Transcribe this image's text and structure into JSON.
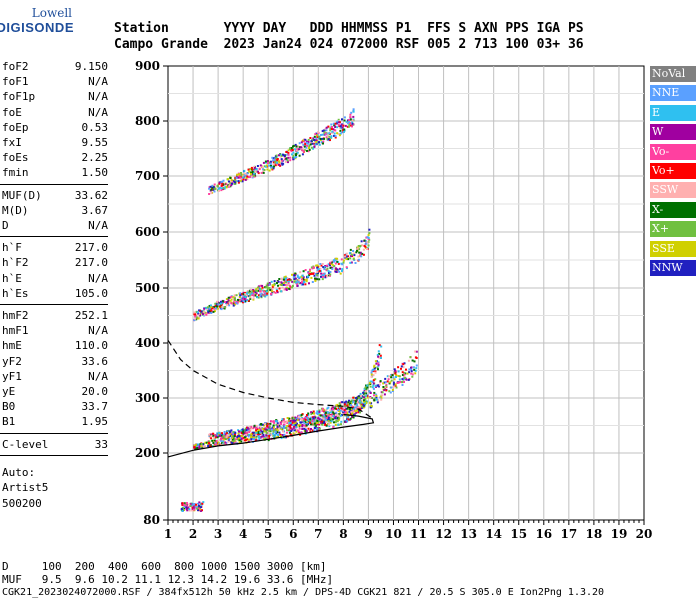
{
  "logo": {
    "top": "Lowell",
    "bottom": "DIGISONDE"
  },
  "header": {
    "labels_line": "Station       YYYY DAY   DDD HHMMSS P1  FFS S AXN PPS IGA PS",
    "values_line": "Campo Grande  2023 Jan24 024 072000 RSF 005 2 713 100 03+ 36"
  },
  "params": [
    {
      "group": [
        {
          "name": "foF2",
          "value": "9.150"
        },
        {
          "name": "foF1",
          "value": "N/A"
        },
        {
          "name": "foF1p",
          "value": "N/A"
        },
        {
          "name": "foE",
          "value": "N/A"
        },
        {
          "name": "foEp",
          "value": "0.53"
        },
        {
          "name": "fxI",
          "value": "9.55"
        },
        {
          "name": "foEs",
          "value": "2.25"
        },
        {
          "name": "fmin",
          "value": "1.50"
        }
      ]
    },
    {
      "group": [
        {
          "name": "MUF(D)",
          "value": "33.62"
        },
        {
          "name": "M(D)",
          "value": "3.67"
        },
        {
          "name": "D",
          "value": "N/A"
        }
      ]
    },
    {
      "group": [
        {
          "name": "h`F",
          "value": "217.0"
        },
        {
          "name": "h`F2",
          "value": "217.0"
        },
        {
          "name": "h`E",
          "value": "N/A"
        },
        {
          "name": "h`Es",
          "value": "105.0"
        }
      ]
    },
    {
      "group": [
        {
          "name": "hmF2",
          "value": "252.1"
        },
        {
          "name": "hmF1",
          "value": "N/A"
        },
        {
          "name": "hmE",
          "value": "110.0"
        },
        {
          "name": "yF2",
          "value": "33.6"
        },
        {
          "name": "yF1",
          "value": "N/A"
        },
        {
          "name": "yE",
          "value": "20.0"
        },
        {
          "name": "B0",
          "value": "33.7"
        },
        {
          "name": "B1",
          "value": "1.95"
        }
      ]
    },
    {
      "group": [
        {
          "name": "C-level",
          "value": "33"
        }
      ]
    }
  ],
  "auto": [
    "Auto:",
    "Artist5",
    "500200"
  ],
  "legend": [
    {
      "label": "NoVal",
      "color": "#808080"
    },
    {
      "label": "NNE",
      "color": "#5aa0ff"
    },
    {
      "label": "E",
      "color": "#2fc0f0"
    },
    {
      "label": "W",
      "color": "#a000a0"
    },
    {
      "label": "Vo-",
      "color": "#ff40a0"
    },
    {
      "label": "Vo+",
      "color": "#ff0000"
    },
    {
      "label": "SSW",
      "color": "#ffb0b0"
    },
    {
      "label": "X-",
      "color": "#007000"
    },
    {
      "label": "X+",
      "color": "#70c040"
    },
    {
      "label": "SSE",
      "color": "#d0d000"
    },
    {
      "label": "NNW",
      "color": "#2020c0"
    }
  ],
  "footer": {
    "line1": "D     100  200  400  600  800 1000 1500 3000 [km]",
    "line2": "MUF   9.5  9.6 10.2 11.1 12.3 14.2 19.6 33.6 [MHz]",
    "line3": "CGK21_2023024072000.RSF / 384fx512h 50 kHz 2.5 km / DPS-4D CGK21 821 / 20.5 S 305.0 E Ion2Png 1.3.20"
  },
  "chart_data": {
    "type": "scatter",
    "xlabel": "",
    "ylabel": "",
    "xlim": [
      1,
      20
    ],
    "ylim": [
      80,
      900
    ],
    "x_ticks": [
      1,
      2,
      3,
      4,
      5,
      6,
      7,
      8,
      9,
      10,
      11,
      12,
      13,
      14,
      15,
      16,
      17,
      18,
      19,
      20
    ],
    "y_ticks": [
      80,
      200,
      300,
      400,
      500,
      600,
      700,
      800,
      900
    ],
    "grid": true,
    "echo_traces": [
      {
        "name": "F2 O-trace",
        "points": [
          [
            2.0,
            212
          ],
          [
            3,
            222
          ],
          [
            4,
            228
          ],
          [
            5,
            235
          ],
          [
            6,
            245
          ],
          [
            7,
            255
          ],
          [
            8,
            270
          ],
          [
            8.6,
            290
          ],
          [
            9.0,
            320
          ],
          [
            9.3,
            360
          ],
          [
            9.5,
            400
          ]
        ]
      },
      {
        "name": "F2 X-trace",
        "points": [
          [
            2.6,
            232
          ],
          [
            4,
            240
          ],
          [
            5,
            250
          ],
          [
            6,
            258
          ],
          [
            7,
            268
          ],
          [
            8,
            282
          ],
          [
            9,
            300
          ],
          [
            9.6,
            320
          ],
          [
            10,
            335
          ],
          [
            10.5,
            350
          ],
          [
            10.9,
            370
          ]
        ]
      },
      {
        "name": "Multiple 2F",
        "points": [
          [
            2.0,
            450
          ],
          [
            3,
            470
          ],
          [
            4,
            485
          ],
          [
            5,
            500
          ],
          [
            6,
            515
          ],
          [
            7,
            530
          ],
          [
            8,
            545
          ],
          [
            8.6,
            565
          ],
          [
            9.0,
            590
          ]
        ]
      },
      {
        "name": "Multiple 3F",
        "points": [
          [
            2.6,
            675
          ],
          [
            3.5,
            692
          ],
          [
            4.4,
            710
          ],
          [
            5.4,
            730
          ],
          [
            6.2,
            750
          ],
          [
            7,
            770
          ],
          [
            7.8,
            790
          ],
          [
            8.4,
            810
          ]
        ]
      },
      {
        "name": "Es",
        "points": [
          [
            1.5,
            105
          ],
          [
            2.0,
            105
          ],
          [
            2.4,
            106
          ]
        ]
      }
    ],
    "profile_solid": [
      [
        1.0,
        193
      ],
      [
        2,
        205
      ],
      [
        3,
        213
      ],
      [
        4,
        218
      ],
      [
        5,
        225
      ],
      [
        6,
        232
      ],
      [
        7,
        240
      ],
      [
        8,
        247
      ],
      [
        8.8,
        252
      ],
      [
        9.2,
        255
      ],
      [
        9.15,
        262
      ],
      [
        8.6,
        267
      ],
      [
        8,
        270
      ]
    ],
    "profile_dashed": [
      [
        1.0,
        405
      ],
      [
        1.5,
        370
      ],
      [
        2,
        350
      ],
      [
        3,
        325
      ],
      [
        4,
        310
      ],
      [
        5,
        300
      ],
      [
        6,
        292
      ],
      [
        7,
        288
      ],
      [
        8,
        285
      ],
      [
        8.6,
        280
      ],
      [
        9.1,
        265
      ]
    ]
  }
}
